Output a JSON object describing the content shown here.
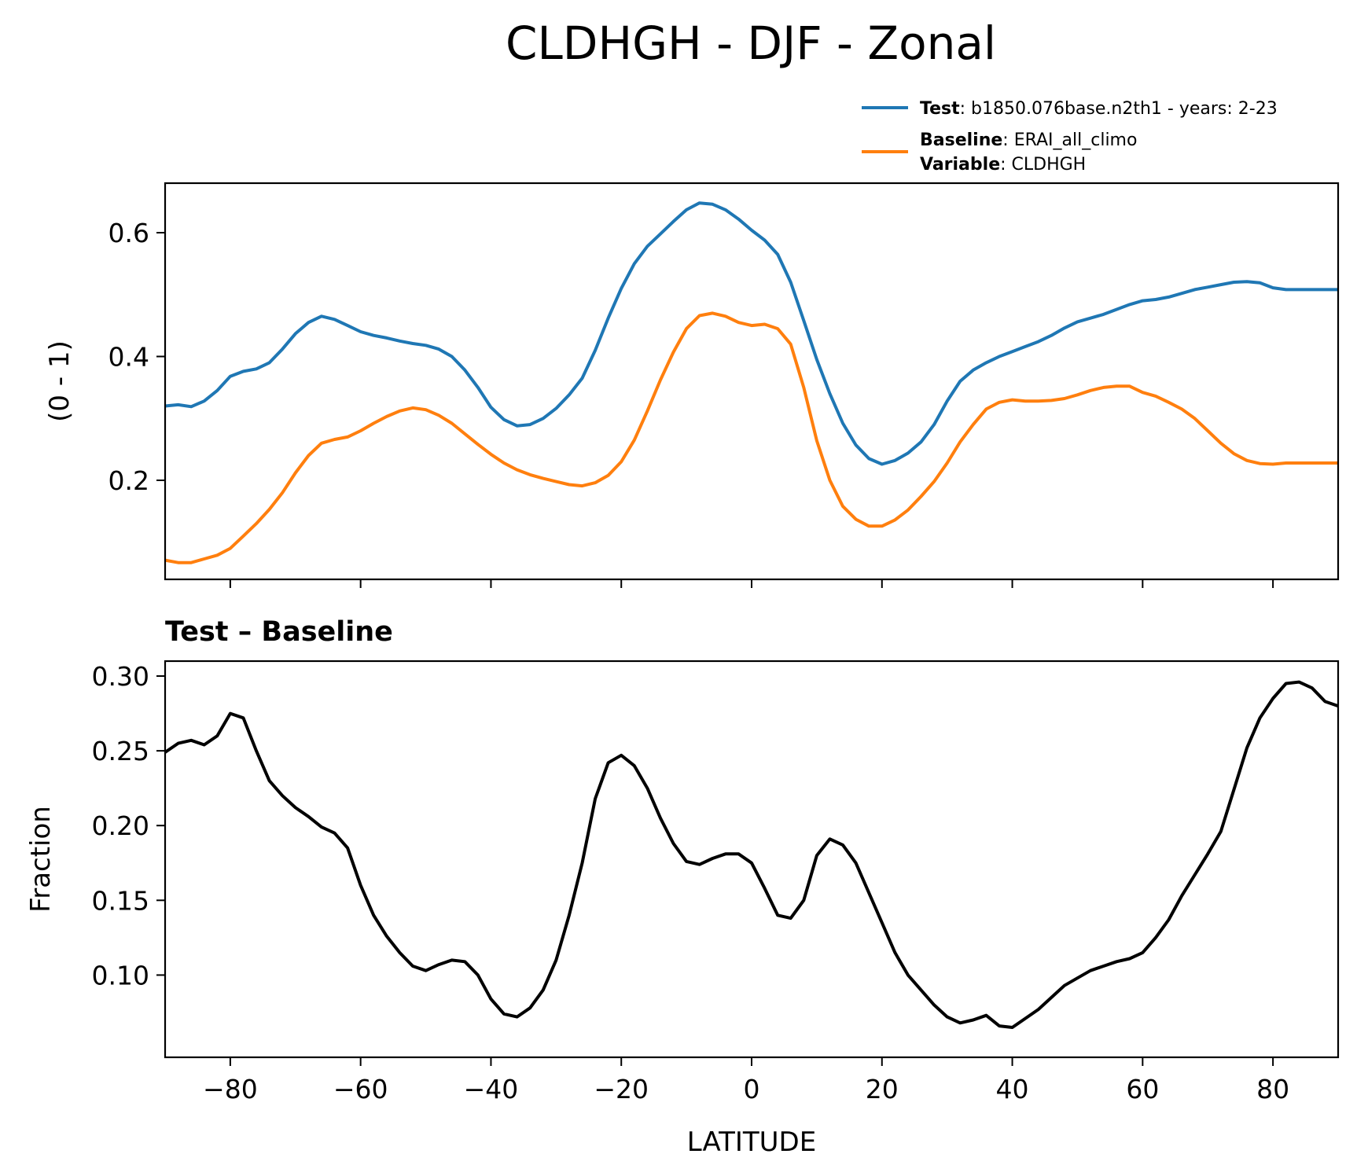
{
  "figure": {
    "title": "CLDHGH - DJF - Zonal"
  },
  "legend": {
    "test_key": "Test",
    "test_value": ": b1850.076base.n2th1 - years: 2-23",
    "baseline_key": "Baseline",
    "baseline_value": ": ERAI_all_climo",
    "variable_key": "Variable",
    "variable_value": ": CLDHGH",
    "colors": {
      "test": "#1f77b4",
      "baseline": "#ff7f0e",
      "diff": "#000000"
    }
  },
  "chart_data": [
    {
      "type": "line",
      "ylabel": "(0 - 1)",
      "xlim": [
        -90,
        90
      ],
      "ylim": [
        0.04,
        0.68
      ],
      "yticks": [
        0.2,
        0.4,
        0.6
      ],
      "ytick_labels": [
        "0.2",
        "0.4",
        "0.6"
      ],
      "xticks": [
        -80,
        -60,
        -40,
        -20,
        0,
        20,
        40,
        60,
        80
      ],
      "x": [
        -90,
        -88,
        -86,
        -84,
        -82,
        -80,
        -78,
        -76,
        -74,
        -72,
        -70,
        -68,
        -66,
        -64,
        -62,
        -60,
        -58,
        -56,
        -54,
        -52,
        -50,
        -48,
        -46,
        -44,
        -42,
        -40,
        -38,
        -36,
        -34,
        -32,
        -30,
        -28,
        -26,
        -24,
        -22,
        -20,
        -18,
        -16,
        -14,
        -12,
        -10,
        -8,
        -6,
        -4,
        -2,
        0,
        2,
        4,
        6,
        8,
        10,
        12,
        14,
        16,
        18,
        20,
        22,
        24,
        26,
        28,
        30,
        32,
        34,
        36,
        38,
        40,
        42,
        44,
        46,
        48,
        50,
        52,
        54,
        56,
        58,
        60,
        62,
        64,
        66,
        68,
        70,
        72,
        74,
        76,
        78,
        80,
        82,
        84,
        86,
        88,
        90
      ],
      "series": [
        {
          "name": "Test",
          "values": [
            0.32,
            0.322,
            0.319,
            0.328,
            0.345,
            0.368,
            0.376,
            0.38,
            0.39,
            0.412,
            0.437,
            0.455,
            0.465,
            0.46,
            0.45,
            0.44,
            0.434,
            0.43,
            0.425,
            0.421,
            0.418,
            0.412,
            0.4,
            0.378,
            0.35,
            0.318,
            0.298,
            0.288,
            0.29,
            0.3,
            0.316,
            0.338,
            0.365,
            0.41,
            0.462,
            0.51,
            0.55,
            0.578,
            0.598,
            0.618,
            0.637,
            0.648,
            0.646,
            0.637,
            0.622,
            0.604,
            0.588,
            0.565,
            0.52,
            0.458,
            0.395,
            0.34,
            0.292,
            0.257,
            0.235,
            0.226,
            0.232,
            0.244,
            0.262,
            0.29,
            0.328,
            0.36,
            0.378,
            0.39,
            0.4,
            0.408,
            0.416,
            0.424,
            0.434,
            0.446,
            0.456,
            0.462,
            0.468,
            0.476,
            0.484,
            0.49,
            0.492,
            0.496,
            0.502,
            0.508,
            0.512,
            0.516,
            0.52,
            0.521,
            0.519,
            0.511,
            0.508,
            0.508,
            0.508,
            0.508,
            0.508
          ]
        },
        {
          "name": "Baseline",
          "values": [
            0.071,
            0.067,
            0.067,
            0.073,
            0.079,
            0.09,
            0.11,
            0.13,
            0.153,
            0.18,
            0.212,
            0.24,
            0.26,
            0.266,
            0.27,
            0.28,
            0.292,
            0.303,
            0.312,
            0.317,
            0.314,
            0.305,
            0.292,
            0.275,
            0.258,
            0.242,
            0.228,
            0.217,
            0.209,
            0.203,
            0.198,
            0.193,
            0.191,
            0.196,
            0.208,
            0.23,
            0.265,
            0.312,
            0.362,
            0.407,
            0.445,
            0.466,
            0.47,
            0.465,
            0.455,
            0.45,
            0.452,
            0.445,
            0.42,
            0.35,
            0.264,
            0.2,
            0.158,
            0.137,
            0.126,
            0.126,
            0.136,
            0.152,
            0.174,
            0.198,
            0.228,
            0.262,
            0.29,
            0.315,
            0.326,
            0.33,
            0.328,
            0.328,
            0.329,
            0.332,
            0.338,
            0.345,
            0.35,
            0.352,
            0.352,
            0.342,
            0.336,
            0.326,
            0.315,
            0.3,
            0.28,
            0.26,
            0.243,
            0.232,
            0.227,
            0.226,
            0.228,
            0.228,
            0.228,
            0.228,
            0.228
          ]
        }
      ]
    },
    {
      "type": "line",
      "title": "Test – Baseline",
      "xlabel": "LATITUDE",
      "ylabel": "Fraction",
      "xlim": [
        -90,
        90
      ],
      "ylim": [
        0.045,
        0.31
      ],
      "yticks": [
        0.1,
        0.15,
        0.2,
        0.25,
        0.3
      ],
      "ytick_labels": [
        "0.10",
        "0.15",
        "0.20",
        "0.25",
        "0.30"
      ],
      "xticks": [
        -80,
        -60,
        -40,
        -20,
        0,
        20,
        40,
        60,
        80
      ],
      "xtick_labels": [
        "−80",
        "−60",
        "−40",
        "−20",
        "0",
        "20",
        "40",
        "60",
        "80"
      ],
      "x": [
        -90,
        -88,
        -86,
        -84,
        -82,
        -80,
        -78,
        -76,
        -74,
        -72,
        -70,
        -68,
        -66,
        -64,
        -62,
        -60,
        -58,
        -56,
        -54,
        -52,
        -50,
        -48,
        -46,
        -44,
        -42,
        -40,
        -38,
        -36,
        -34,
        -32,
        -30,
        -28,
        -26,
        -24,
        -22,
        -20,
        -18,
        -16,
        -14,
        -12,
        -10,
        -8,
        -6,
        -4,
        -2,
        0,
        2,
        4,
        6,
        8,
        10,
        12,
        14,
        16,
        18,
        20,
        22,
        24,
        26,
        28,
        30,
        32,
        34,
        36,
        38,
        40,
        42,
        44,
        46,
        48,
        50,
        52,
        54,
        56,
        58,
        60,
        62,
        64,
        66,
        68,
        70,
        72,
        74,
        76,
        78,
        80,
        82,
        84,
        86,
        88,
        90
      ],
      "series": [
        {
          "values": [
            0.249,
            0.255,
            0.257,
            0.254,
            0.26,
            0.275,
            0.272,
            0.25,
            0.23,
            0.22,
            0.212,
            0.206,
            0.199,
            0.195,
            0.185,
            0.16,
            0.14,
            0.126,
            0.115,
            0.106,
            0.103,
            0.107,
            0.11,
            0.109,
            0.1,
            0.084,
            0.074,
            0.072,
            0.078,
            0.09,
            0.11,
            0.14,
            0.175,
            0.218,
            0.242,
            0.247,
            0.24,
            0.225,
            0.205,
            0.188,
            0.176,
            0.174,
            0.178,
            0.181,
            0.181,
            0.175,
            0.158,
            0.14,
            0.138,
            0.15,
            0.18,
            0.191,
            0.187,
            0.175,
            0.155,
            0.135,
            0.115,
            0.1,
            0.09,
            0.08,
            0.072,
            0.068,
            0.07,
            0.073,
            0.066,
            0.065,
            0.071,
            0.077,
            0.085,
            0.093,
            0.098,
            0.103,
            0.106,
            0.109,
            0.111,
            0.115,
            0.125,
            0.137,
            0.153,
            0.167,
            0.181,
            0.196,
            0.224,
            0.252,
            0.272,
            0.285,
            0.295,
            0.296,
            0.292,
            0.283,
            0.28
          ]
        }
      ]
    }
  ]
}
